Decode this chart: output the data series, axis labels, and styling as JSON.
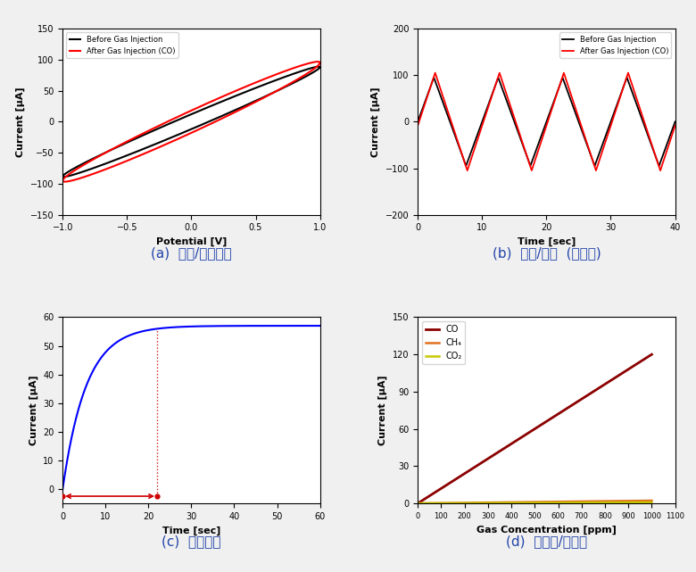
{
  "fig_width": 7.8,
  "fig_height": 6.41,
  "background_color": "#f0f0f0",
  "panel_a": {
    "xlabel": "Potential [V]",
    "ylabel": "Current [μA]",
    "xlim": [
      -1.0,
      1.0
    ],
    "ylim": [
      -150,
      150
    ],
    "yticks": [
      -150,
      -100,
      -50,
      0,
      50,
      100,
      150
    ],
    "xticks": [
      -1.0,
      -0.5,
      0.0,
      0.5,
      1.0
    ],
    "legend": [
      "Before Gas Injection",
      "After Gas Injection (CO)"
    ],
    "legend_colors": [
      "black",
      "red"
    ],
    "caption": "(a)  산화/환원반응"
  },
  "panel_b": {
    "xlabel": "Time [sec]",
    "ylabel": "Current [μA]",
    "xlim": [
      0,
      40
    ],
    "ylim": [
      -200,
      200
    ],
    "yticks": [
      -200,
      -100,
      0,
      100,
      200
    ],
    "xticks": [
      0,
      10,
      20,
      30,
      40
    ],
    "legend": [
      "Before Gas Injection",
      "After Gas Injection (CO)"
    ],
    "legend_colors": [
      "black",
      "red"
    ],
    "caption": "(b)  시간/전류  (재현성)"
  },
  "panel_c": {
    "xlabel": "Time [sec]",
    "ylabel": "Current [μA]",
    "xlim": [
      0,
      60
    ],
    "ylim": [
      -5,
      60
    ],
    "yticks": [
      0,
      10,
      20,
      30,
      40,
      50,
      60
    ],
    "xticks": [
      0,
      10,
      20,
      30,
      40,
      50,
      60
    ],
    "curve_color": "blue",
    "annotation_color": "#cc0000",
    "response_time": 22,
    "tau": 5.5,
    "y_max": 57,
    "caption": "(c)  반응시간"
  },
  "panel_d": {
    "xlabel": "Gas Concentration [ppm]",
    "ylabel": "Current [μA]",
    "xlim": [
      0,
      1100
    ],
    "ylim": [
      0,
      150
    ],
    "yticks": [
      0,
      30,
      60,
      90,
      120,
      150
    ],
    "xticks": [
      0,
      100,
      200,
      300,
      400,
      500,
      600,
      700,
      800,
      900,
      1000,
      1100
    ],
    "legend": [
      "CO",
      "CH₄",
      "CO₂"
    ],
    "legend_colors": [
      "#8b0000",
      "#e07020",
      "#c8c800"
    ],
    "slope_co": 0.12,
    "slope_ch4": 0.0022,
    "slope_co2": 0.0008,
    "caption": "(d)  분해능/선택성"
  }
}
